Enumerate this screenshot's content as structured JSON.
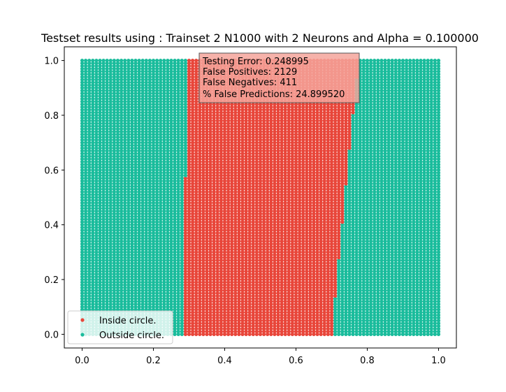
{
  "chart_data": {
    "type": "scatter",
    "title": "Testset results using : Trainset 2 N1000 with 2 Neurons and Alpha = 0.100000",
    "xlabel": "",
    "ylabel": "",
    "xlim": [
      -0.05,
      1.05
    ],
    "ylim": [
      -0.05,
      1.05
    ],
    "xticks": [
      0.0,
      0.2,
      0.4,
      0.6,
      0.8,
      1.0
    ],
    "yticks": [
      0.0,
      0.2,
      0.4,
      0.6,
      0.8,
      1.0
    ],
    "xtick_labels": [
      "0.0",
      "0.2",
      "0.4",
      "0.6",
      "0.8",
      "1.0"
    ],
    "ytick_labels": [
      "0.0",
      "0.2",
      "0.4",
      "0.6",
      "0.8",
      "1.0"
    ],
    "grid": false,
    "legend_position": "lower-left",
    "series": [
      {
        "name": "Inside circle.",
        "color": "#e8463a",
        "region": "points with x between the left and right boundaries at each y",
        "left_boundary": [
          [
            0.0,
            0.29
          ],
          [
            0.56,
            0.29
          ],
          [
            0.58,
            0.3
          ],
          [
            1.0,
            0.3
          ]
        ],
        "right_boundary": [
          [
            0.0,
            0.705
          ],
          [
            0.13,
            0.705
          ],
          [
            0.14,
            0.715
          ],
          [
            0.26,
            0.715
          ],
          [
            0.28,
            0.725
          ],
          [
            0.39,
            0.725
          ],
          [
            0.41,
            0.735
          ],
          [
            0.53,
            0.735
          ],
          [
            0.55,
            0.745
          ],
          [
            0.66,
            0.745
          ],
          [
            0.68,
            0.755
          ],
          [
            0.79,
            0.755
          ],
          [
            0.81,
            0.765
          ],
          [
            0.92,
            0.765
          ],
          [
            0.94,
            0.775
          ],
          [
            1.0,
            0.775
          ]
        ]
      },
      {
        "name": "Outside circle.",
        "color": "#1abc9c",
        "region": "all remaining points of the grid over [0,1] x [0,1]"
      }
    ],
    "annotation_lines": [
      "Testing Error: 0.248995",
      "False Positives: 2129",
      "False Negatives: 411",
      "% False Predictions: 24.899520"
    ],
    "annotation_color": "#f5a49b"
  }
}
